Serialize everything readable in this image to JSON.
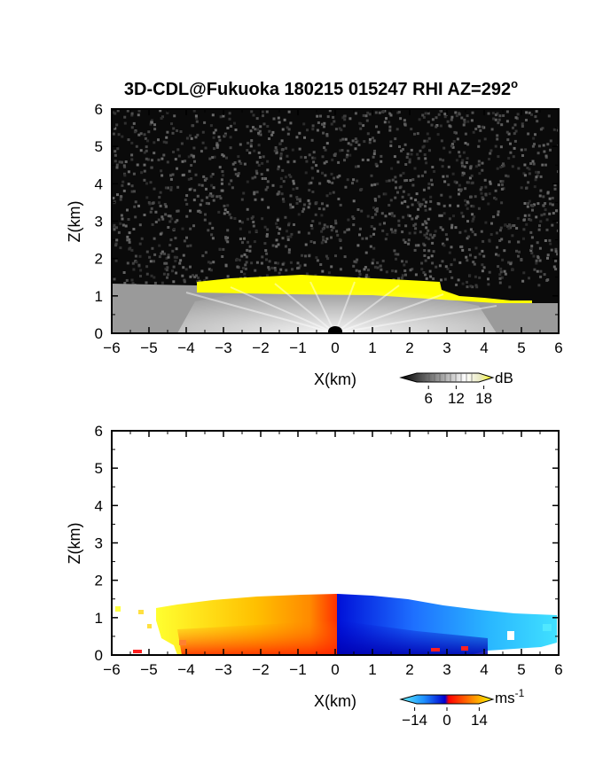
{
  "figure": {
    "title": "3D-CDL@Fukuoka 180215 015247 RHI AZ=292",
    "title_superscript": "o"
  },
  "chart_data": [
    {
      "type": "heatmap",
      "variable": "backscatter",
      "xlabel": "X(km)",
      "ylabel": "Z(km)",
      "xlim": [
        -6,
        6
      ],
      "ylim": [
        0,
        6
      ],
      "xticks": [
        "-6",
        "-5",
        "-4",
        "-3",
        "-2",
        "-1",
        "0",
        "1",
        "2",
        "3",
        "4",
        "5",
        "6"
      ],
      "yticks": [
        "0",
        "1",
        "2",
        "3",
        "4",
        "5",
        "6"
      ],
      "background": "noise",
      "boundary_layer_top_km": [
        [
          -6,
          1.35
        ],
        [
          -5,
          1.4
        ],
        [
          -4,
          1.45
        ],
        [
          -3,
          1.5
        ],
        [
          -2,
          1.5
        ],
        [
          -1,
          1.55
        ],
        [
          0,
          1.5
        ],
        [
          1,
          1.45
        ],
        [
          2,
          1.42
        ],
        [
          2.8,
          1.2
        ],
        [
          3.5,
          1.08
        ],
        [
          4.5,
          1.0
        ],
        [
          5.5,
          0.95
        ],
        [
          6,
          0.92
        ]
      ],
      "colorbar": {
        "unit": "dB",
        "ticks": [
          "6",
          "12",
          "18"
        ],
        "range": [
          0,
          20
        ],
        "colors": [
          "#000000",
          "#ffffff",
          "#ffff00"
        ]
      }
    },
    {
      "type": "heatmap",
      "variable": "radial velocity",
      "xlabel": "X(km)",
      "ylabel": "Z(km)",
      "xlim": [
        -6,
        6
      ],
      "ylim": [
        0,
        6
      ],
      "xticks": [
        "-6",
        "-5",
        "-4",
        "-3",
        "-2",
        "-1",
        "0",
        "1",
        "2",
        "3",
        "4",
        "5",
        "6"
      ],
      "yticks": [
        "0",
        "1",
        "2",
        "3",
        "4",
        "5",
        "6"
      ],
      "left_top_km": [
        [
          -6,
          1.2
        ],
        [
          -5,
          1.3
        ],
        [
          -4,
          1.45
        ],
        [
          -3,
          1.5
        ],
        [
          -2,
          1.55
        ],
        [
          -1,
          1.6
        ],
        [
          0,
          1.6
        ]
      ],
      "right_top_km": [
        [
          0,
          1.6
        ],
        [
          1,
          1.55
        ],
        [
          2,
          1.45
        ],
        [
          3,
          1.3
        ],
        [
          4,
          1.15
        ],
        [
          5,
          1.05
        ],
        [
          6,
          1.0
        ]
      ],
      "colorbar": {
        "unit": "ms",
        "unit_superscript": "-1",
        "ticks": [
          "-14",
          "0",
          "14"
        ],
        "range": [
          -20,
          20
        ],
        "colors": [
          "#5ff0ff",
          "#1e90ff",
          "#0000d0",
          "#ff0000",
          "#ff8c00",
          "#ffff00"
        ]
      }
    }
  ]
}
